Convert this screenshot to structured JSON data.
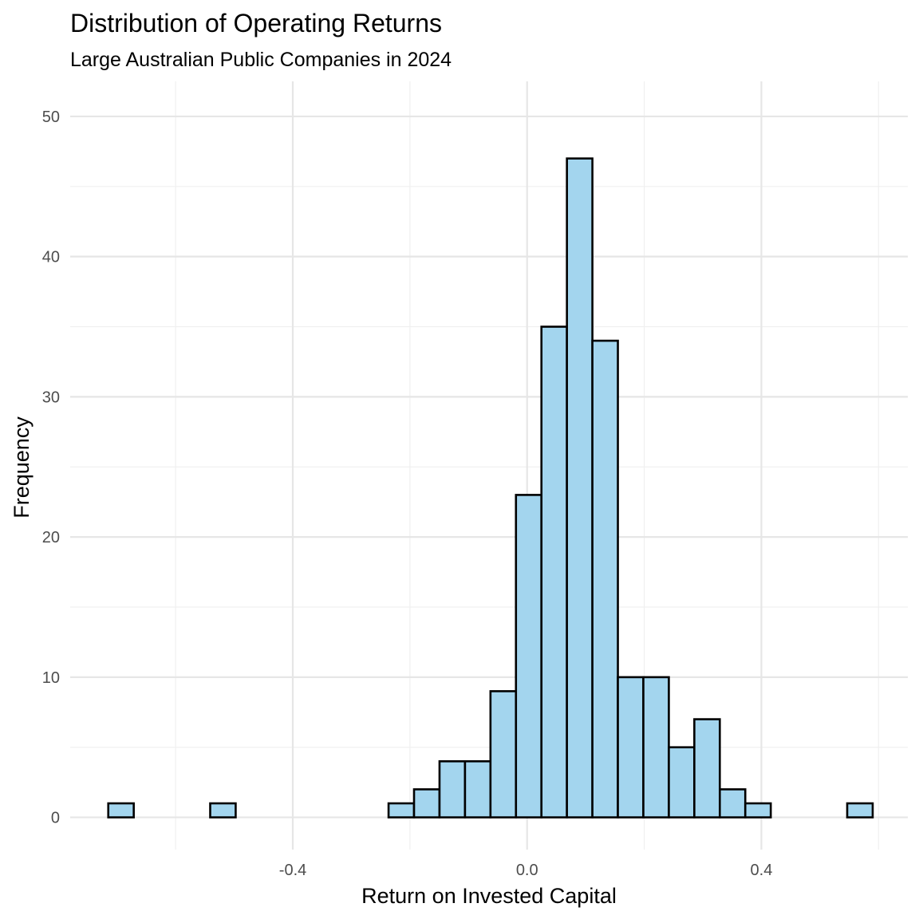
{
  "chart_data": {
    "type": "bar",
    "title": "Distribution of Operating Returns",
    "subtitle": "Large Australian Public Companies in 2024",
    "xlabel": "Return on Invested Capital",
    "ylabel": "Frequency",
    "xlim": [
      -0.78,
      0.65
    ],
    "ylim": [
      -2.3,
      52.5
    ],
    "x_ticks": [
      -0.4,
      0.0,
      0.4
    ],
    "x_tick_labels": [
      "-0.4",
      "0.0",
      "0.4"
    ],
    "y_ticks": [
      0,
      10,
      20,
      30,
      40,
      50
    ],
    "y_tick_labels": [
      "0",
      "10",
      "20",
      "30",
      "40",
      "50"
    ],
    "x_minor_gridlines": [
      -0.6,
      -0.2,
      0.2,
      0.6
    ],
    "y_minor_gridlines": [
      5,
      15,
      25,
      35,
      45
    ],
    "grid": true,
    "legend": "none",
    "bin_width": 0.0435,
    "bins": [
      {
        "start": -0.715,
        "end": -0.6715,
        "count": 1
      },
      {
        "start": -0.6715,
        "end": -0.628,
        "count": 0
      },
      {
        "start": -0.628,
        "end": -0.5845,
        "count": 0
      },
      {
        "start": -0.5845,
        "end": -0.541,
        "count": 0
      },
      {
        "start": -0.541,
        "end": -0.4975,
        "count": 1
      },
      {
        "start": -0.4975,
        "end": -0.454,
        "count": 0
      },
      {
        "start": -0.454,
        "end": -0.4105,
        "count": 0
      },
      {
        "start": -0.4105,
        "end": -0.367,
        "count": 0
      },
      {
        "start": -0.367,
        "end": -0.3235,
        "count": 0
      },
      {
        "start": -0.3235,
        "end": -0.28,
        "count": 0
      },
      {
        "start": -0.28,
        "end": -0.2365,
        "count": 0
      },
      {
        "start": -0.2365,
        "end": -0.193,
        "count": 1
      },
      {
        "start": -0.193,
        "end": -0.1495,
        "count": 2
      },
      {
        "start": -0.1495,
        "end": -0.106,
        "count": 4
      },
      {
        "start": -0.106,
        "end": -0.0625,
        "count": 4
      },
      {
        "start": -0.0625,
        "end": -0.019,
        "count": 9
      },
      {
        "start": -0.019,
        "end": 0.0245,
        "count": 23
      },
      {
        "start": 0.0245,
        "end": 0.068,
        "count": 35
      },
      {
        "start": 0.068,
        "end": 0.1115,
        "count": 47
      },
      {
        "start": 0.1115,
        "end": 0.155,
        "count": 34
      },
      {
        "start": 0.155,
        "end": 0.1985,
        "count": 10
      },
      {
        "start": 0.1985,
        "end": 0.242,
        "count": 10
      },
      {
        "start": 0.242,
        "end": 0.2855,
        "count": 5
      },
      {
        "start": 0.2855,
        "end": 0.329,
        "count": 7
      },
      {
        "start": 0.329,
        "end": 0.3725,
        "count": 2
      },
      {
        "start": 0.3725,
        "end": 0.416,
        "count": 1
      },
      {
        "start": 0.416,
        "end": 0.4595,
        "count": 0
      },
      {
        "start": 0.4595,
        "end": 0.503,
        "count": 0
      },
      {
        "start": 0.503,
        "end": 0.5465,
        "count": 0
      },
      {
        "start": 0.5465,
        "end": 0.59,
        "count": 1
      }
    ],
    "colors": {
      "bar_fill": "#a3d5ee",
      "bar_stroke": "#000000",
      "grid_major": "#e6e6e6",
      "grid_minor": "#f0f0f0",
      "text": "#000000",
      "tick_text": "#4d4d4d"
    }
  }
}
